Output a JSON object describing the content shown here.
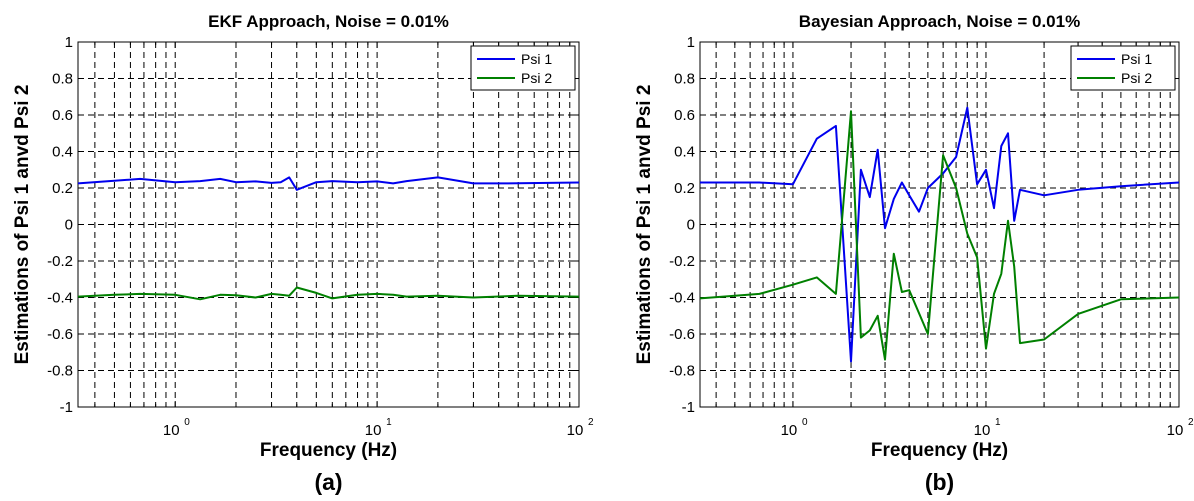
{
  "colors": {
    "psi1": "#0000ee",
    "psi2": "#008000"
  },
  "chart_data": [
    {
      "type": "line",
      "title": "EKF Approach, Noise = 0.01%",
      "xlabel": "Frequency (Hz)",
      "ylabel": "Estimations of Psi 1 anvd Psi 2",
      "caption": "(a)",
      "x_scale": "log",
      "xlim": [
        0.33,
        100
      ],
      "ylim": [
        -1,
        1
      ],
      "x_ticks": [
        {
          "base": "10",
          "exp": "0",
          "value": 1
        },
        {
          "base": "10",
          "exp": "1",
          "value": 10
        },
        {
          "base": "10",
          "exp": "2",
          "value": 100
        }
      ],
      "y_ticks": [
        "-1",
        "-0.8",
        "-0.6",
        "-0.4",
        "-0.2",
        "0",
        "0.2",
        "0.4",
        "0.6",
        "0.8",
        "1"
      ],
      "grid": true,
      "legend_position": "top-right",
      "series": [
        {
          "name": "Psi 1",
          "color": "#0000ee",
          "x": [
            0.33,
            0.5,
            0.67,
            1.0,
            1.33,
            1.67,
            2.0,
            2.5,
            3.0,
            3.33,
            3.67,
            4.0,
            5.0,
            6.0,
            8.0,
            10,
            12,
            14,
            20,
            30,
            50,
            100
          ],
          "y": [
            0.225,
            0.24,
            0.25,
            0.232,
            0.238,
            0.25,
            0.232,
            0.236,
            0.228,
            0.232,
            0.258,
            0.19,
            0.232,
            0.238,
            0.232,
            0.236,
            0.225,
            0.238,
            0.258,
            0.225,
            0.226,
            0.23
          ]
        },
        {
          "name": "Psi 2",
          "color": "#008000",
          "x": [
            0.33,
            0.5,
            0.67,
            1.0,
            1.33,
            1.67,
            2.0,
            2.5,
            3.0,
            3.33,
            3.67,
            4.0,
            5.0,
            6.0,
            8.0,
            10,
            12,
            14,
            20,
            30,
            50,
            100
          ],
          "y": [
            -0.395,
            -0.385,
            -0.38,
            -0.385,
            -0.41,
            -0.385,
            -0.388,
            -0.4,
            -0.38,
            -0.385,
            -0.39,
            -0.345,
            -0.375,
            -0.405,
            -0.385,
            -0.38,
            -0.385,
            -0.395,
            -0.39,
            -0.4,
            -0.39,
            -0.395
          ]
        }
      ]
    },
    {
      "type": "line",
      "title": "Bayesian Approach, Noise = 0.01%",
      "xlabel": "Frequency (Hz)",
      "ylabel": "Estimations of Psi 1 anvd Psi 2",
      "caption": "(b)",
      "x_scale": "log",
      "xlim": [
        0.33,
        100
      ],
      "ylim": [
        -1,
        1
      ],
      "x_ticks": [
        {
          "base": "10",
          "exp": "0",
          "value": 1
        },
        {
          "base": "10",
          "exp": "1",
          "value": 10
        },
        {
          "base": "10",
          "exp": "2",
          "value": 100
        }
      ],
      "y_ticks": [
        "-1",
        "-0.8",
        "-0.6",
        "-0.4",
        "-0.2",
        "0",
        "0.2",
        "0.4",
        "0.6",
        "0.8",
        "1"
      ],
      "grid": true,
      "legend_position": "top-right",
      "series": [
        {
          "name": "Psi 1",
          "color": "#0000ee",
          "x": [
            0.33,
            0.5,
            0.67,
            1.0,
            1.33,
            1.67,
            2.0,
            2.25,
            2.5,
            2.75,
            3.0,
            3.33,
            3.67,
            4.0,
            4.5,
            5.0,
            6.0,
            7.0,
            8.0,
            9.0,
            10,
            11,
            12,
            13,
            14,
            15,
            20,
            30,
            50,
            100
          ],
          "y": [
            0.23,
            0.23,
            0.23,
            0.22,
            0.47,
            0.54,
            -0.75,
            0.3,
            0.15,
            0.41,
            -0.02,
            0.14,
            0.23,
            0.16,
            0.07,
            0.2,
            0.28,
            0.37,
            0.64,
            0.22,
            0.3,
            0.09,
            0.43,
            0.5,
            0.02,
            0.19,
            0.16,
            0.19,
            0.21,
            0.23
          ]
        },
        {
          "name": "Psi 2",
          "color": "#008000",
          "x": [
            0.33,
            0.5,
            0.67,
            1.0,
            1.33,
            1.67,
            2.0,
            2.25,
            2.5,
            2.75,
            3.0,
            3.33,
            3.67,
            4.0,
            5.0,
            6.0,
            7.0,
            8.0,
            9.0,
            10,
            11,
            12,
            13,
            14,
            15,
            20,
            30,
            50,
            100
          ],
          "y": [
            -0.405,
            -0.39,
            -0.38,
            -0.33,
            -0.29,
            -0.38,
            0.62,
            -0.62,
            -0.58,
            -0.5,
            -0.74,
            -0.16,
            -0.37,
            -0.36,
            -0.6,
            0.38,
            0.2,
            -0.05,
            -0.18,
            -0.68,
            -0.38,
            -0.27,
            0.02,
            -0.23,
            -0.65,
            -0.63,
            -0.49,
            -0.41,
            -0.4
          ]
        }
      ]
    }
  ]
}
